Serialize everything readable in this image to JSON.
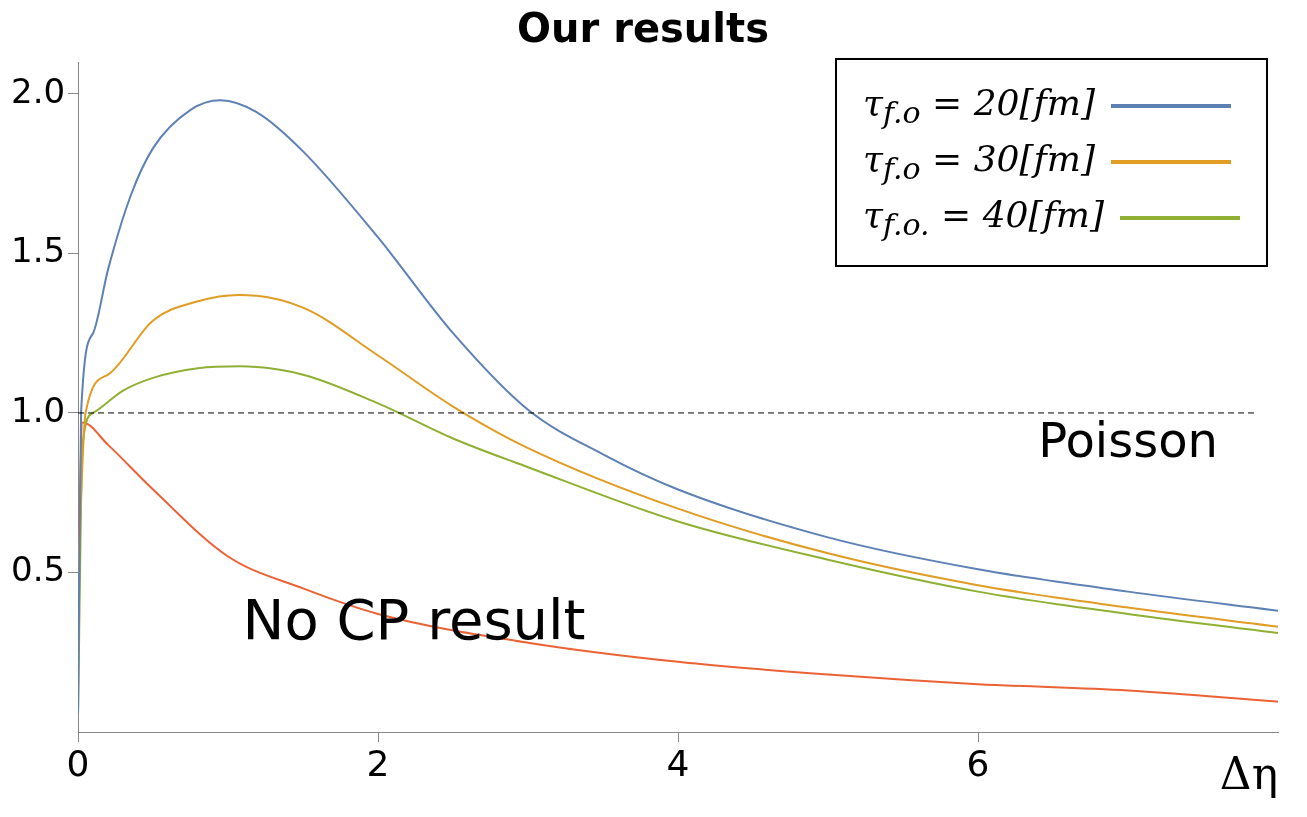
{
  "chart_data": {
    "type": "line",
    "title": "Our results",
    "xlabel": "Δη",
    "xlim": [
      0,
      8
    ],
    "xticks": [
      0,
      2,
      4,
      6
    ],
    "ylim": [
      0,
      2.1
    ],
    "yticks": [
      0.5,
      {
        "value": 1,
        "label": "1.0"
      },
      1.5,
      {
        "value": 2,
        "label": "2.0"
      }
    ],
    "grid": false,
    "legend": "top right",
    "marker": "none",
    "line_style": "solid",
    "series": [
      {
        "name": "τ$_{f.o}$ = 20[fm]",
        "color": "#5e81b5",
        "x": [
          0,
          0.02,
          0.1,
          0.2,
          0.35,
          0.5,
          0.75,
          0.95,
          1.2,
          1.5,
          2,
          2.5,
          3,
          3.5,
          4,
          5,
          6,
          7,
          8
        ],
        "values": [
          0.06,
          1.0,
          1.25,
          1.45,
          1.68,
          1.83,
          1.95,
          1.98,
          1.94,
          1.82,
          1.55,
          1.25,
          1.01,
          0.87,
          0.76,
          0.61,
          0.51,
          0.44,
          0.38
        ]
      },
      {
        "name": "τ$_{f.o}$ = 30[fm]",
        "color": "#e19c24",
        "x": [
          0,
          0.05,
          0.2,
          0.5,
          0.8,
          1.07,
          1.5,
          2,
          2.5,
          3,
          4,
          5,
          6,
          7,
          8
        ],
        "values": [
          0.5,
          1.0,
          1.12,
          1.29,
          1.35,
          1.37,
          1.33,
          1.18,
          1.02,
          0.89,
          0.7,
          0.56,
          0.46,
          0.39,
          0.33
        ]
      },
      {
        "name": "τ$_{f.o.}$ = 40[fm]",
        "color": "#8fb032",
        "x": [
          0,
          0.03,
          0.1,
          0.3,
          0.5,
          0.8,
          1.08,
          1.5,
          2,
          2.5,
          3,
          4,
          5,
          6,
          7,
          8
        ],
        "values": [
          0.07,
          0.9,
          1.0,
          1.07,
          1.11,
          1.14,
          1.146,
          1.12,
          1.03,
          0.92,
          0.83,
          0.66,
          0.54,
          0.44,
          0.37,
          0.31
        ]
      },
      {
        "color": "#eb6235",
        "x": [
          0,
          0.03,
          0.2,
          0.5,
          1,
          1.5,
          2,
          3,
          4,
          5,
          6,
          7,
          8
        ],
        "values": [
          0.5,
          0.97,
          0.9,
          0.76,
          0.55,
          0.45,
          0.37,
          0.28,
          0.22,
          0.18,
          0.15,
          0.13,
          0.095
        ]
      }
    ],
    "ref_lines": [
      {
        "axis": "y",
        "value": 1,
        "label": "Poisson",
        "color": "#000000",
        "line_style": "dashed"
      }
    ],
    "annotations": [
      "No CP result"
    ]
  }
}
